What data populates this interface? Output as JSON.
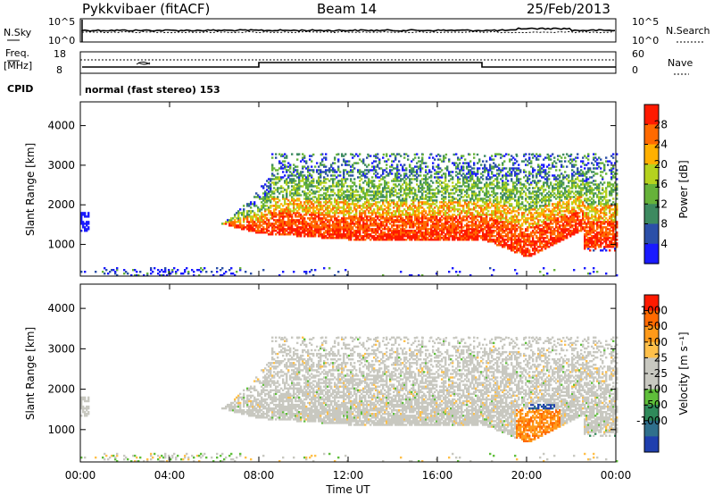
{
  "header": {
    "station": "Pykkvibaer (fitACF)",
    "beam": "Beam 14",
    "date": "25/Feb/2013"
  },
  "top_panels": {
    "nsky_label": "N.Sky",
    "nsky_ticks": [
      "10^5",
      "10^0"
    ],
    "nsearch_ticks": [
      "10^5",
      "10^0"
    ],
    "nsearch_label": "N.Search",
    "freq_label_1": "Freq.",
    "freq_label_2": "[MHz]",
    "freq_ticks": [
      "18",
      "8"
    ],
    "nave_ticks": [
      "60",
      "0"
    ],
    "nave_label": "Nave",
    "cpid_label": "CPID",
    "cpid_text": "normal (fast stereo) 153"
  },
  "chart_data": [
    {
      "type": "heatmap",
      "name": "power",
      "ylabel": "Slant Range [km]",
      "yticks": [
        "1000",
        "2000",
        "3000",
        "4000"
      ],
      "ylim": [
        200,
        4600
      ],
      "xlim": [
        0,
        24
      ],
      "colorbar_label": "Power [dB]",
      "colorbar_ticks": [
        "4",
        "8",
        "12",
        "16",
        "20",
        "24",
        "28"
      ],
      "colors": [
        "#1a1aff",
        "#2b4fa8",
        "#3d8a60",
        "#66b23a",
        "#b5d21e",
        "#ffb000",
        "#ff6a00",
        "#ff1a00"
      ]
    },
    {
      "type": "heatmap",
      "name": "velocity",
      "ylabel": "Slant Range [km]",
      "yticks": [
        "1000",
        "2000",
        "3000",
        "4000"
      ],
      "ylim": [
        200,
        4600
      ],
      "xlim": [
        0,
        24
      ],
      "colorbar_label": "Velocity [m s⁻¹]",
      "colorbar_ticks": [
        "1000",
        "500",
        "100",
        "25",
        "-25",
        "-100",
        "-500",
        "-1000"
      ],
      "colors": [
        "#1f3fae",
        "#2f6f8c",
        "#2f8a5a",
        "#5fbf3a",
        "#c8c8c0",
        "#c8c8c0",
        "#ffc04a",
        "#ff9a1a",
        "#ff6a00",
        "#ff1a00"
      ],
      "xticks": [
        "00:00",
        "04:00",
        "08:00",
        "12:00",
        "16:00",
        "20:00",
        "00:00"
      ],
      "xlabel": "Time UT"
    }
  ]
}
